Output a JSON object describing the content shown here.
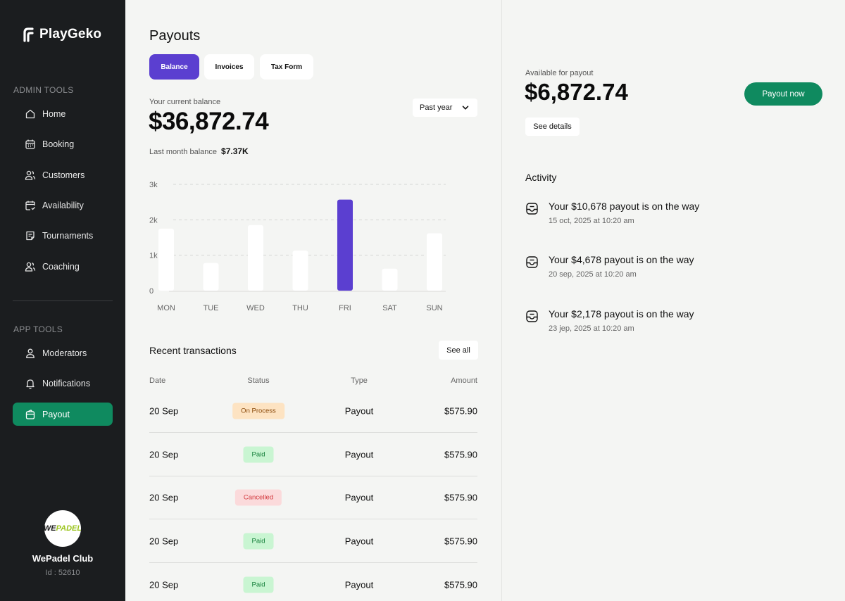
{
  "brand": {
    "name": "PlayGeko"
  },
  "sidebar": {
    "admin_label": "ADMIN TOOLS",
    "admin_items": [
      {
        "label": "Home",
        "icon": "home-icon"
      },
      {
        "label": "Booking",
        "icon": "calendar-icon"
      },
      {
        "label": "Customers",
        "icon": "users-icon"
      },
      {
        "label": "Availability",
        "icon": "calendar-check-icon"
      },
      {
        "label": "Tournaments",
        "icon": "document-icon"
      },
      {
        "label": "Coaching",
        "icon": "users-icon"
      }
    ],
    "app_label": "APP TOOLS",
    "app_items": [
      {
        "label": "Moderators",
        "icon": "user-icon"
      },
      {
        "label": "Notifications",
        "icon": "bell-icon"
      },
      {
        "label": "Payout",
        "icon": "wallet-icon",
        "active": true
      }
    ],
    "club": {
      "logo_text_a": "WE",
      "logo_text_b": "PADEL",
      "name": "WePadel Club",
      "id_label": "Id : 52610"
    }
  },
  "main": {
    "title": "Payouts",
    "tabs": [
      "Balance",
      "Invoices",
      "Tax Form"
    ],
    "active_tab": "Balance",
    "balance_label": "Your current balance",
    "balance_value": "$36,872.74",
    "period": "Past year",
    "last_month_label": "Last month balance",
    "last_month_value": "$7.37K"
  },
  "chart_data": {
    "type": "bar",
    "categories": [
      "MON",
      "TUE",
      "WED",
      "THU",
      "FRI",
      "SAT",
      "SUN"
    ],
    "values": [
      1750,
      780,
      1850,
      1130,
      2570,
      620,
      1620
    ],
    "highlight_index": 4,
    "y_ticks": [
      0,
      1000,
      2000,
      3000
    ],
    "y_tick_labels": [
      "0",
      "1k",
      "2k",
      "3k"
    ],
    "ylim": [
      0,
      3000
    ],
    "grid": true,
    "colors": {
      "bar": "#ffffff",
      "highlight": "#5b3fd0",
      "grid": "#d5d6d4"
    }
  },
  "transactions": {
    "title": "Recent transactions",
    "see_all": "See all",
    "columns": [
      "Date",
      "Status",
      "Type",
      "Amount"
    ],
    "rows": [
      {
        "date": "20 Sep",
        "status": "On Process",
        "status_kind": "process",
        "type": "Payout",
        "amount": "$575.90"
      },
      {
        "date": "20 Sep",
        "status": "Paid",
        "status_kind": "paid",
        "type": "Payout",
        "amount": "$575.90"
      },
      {
        "date": "20 Sep",
        "status": "Cancelled",
        "status_kind": "cancelled",
        "type": "Payout",
        "amount": "$575.90"
      },
      {
        "date": "20 Sep",
        "status": "Paid",
        "status_kind": "paid",
        "type": "Payout",
        "amount": "$575.90"
      },
      {
        "date": "20 Sep",
        "status": "Paid",
        "status_kind": "paid",
        "type": "Payout",
        "amount": "$575.90"
      }
    ],
    "status_colors": {
      "process": {
        "bg": "#fde3c2",
        "fg": "#8a4a0b"
      },
      "paid": {
        "bg": "#c9f5d2",
        "fg": "#16803b"
      },
      "cancelled": {
        "bg": "#fbdadb",
        "fg": "#d33a3f"
      }
    }
  },
  "right": {
    "available_label": "Available for payout",
    "available_value": "$6,872.74",
    "payout_button": "Payout now",
    "details_button": "See details",
    "activity_title": "Activity",
    "activity": [
      {
        "title": "Your $10,678 payout is on the way",
        "date": "15 oct, 2025 at 10:20 am"
      },
      {
        "title": "Your $4,678 payout is on the way",
        "date": "20 sep, 2025 at 10:20 am"
      },
      {
        "title": "Your $2,178 payout is on the way",
        "date": "23 jep, 2025 at 10:20 am"
      }
    ]
  },
  "colors": {
    "sidebar_bg": "#1b1d1f",
    "accent_green": "#0f8a5f",
    "accent_purple": "#5b3fd0",
    "page_bg": "#f4f5f3"
  }
}
